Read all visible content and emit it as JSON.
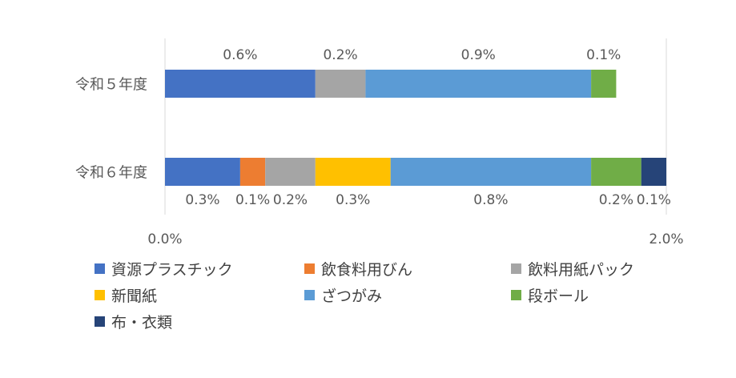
{
  "chart_data": {
    "type": "bar",
    "orientation": "horizontal",
    "stacked": true,
    "categories": [
      "令和５年度",
      "令和６年度"
    ],
    "xlim": [
      0,
      2.0
    ],
    "x_tick_labels": [
      "0.0%",
      "2.0%"
    ],
    "grid": false,
    "legend_position": "bottom",
    "series": [
      {
        "name": "資源プラスチック",
        "color": "#4472C4",
        "values": [
          0.6,
          0.3
        ],
        "labels": [
          "0.6%",
          "0.3%"
        ]
      },
      {
        "name": "飲食料用びん",
        "color": "#ED7D31",
        "values": [
          0,
          0.1
        ],
        "labels": [
          "",
          "0.1%"
        ]
      },
      {
        "name": "飲料用紙パック",
        "color": "#A5A5A5",
        "values": [
          0.2,
          0.2
        ],
        "labels": [
          "0.2%",
          "0.2%"
        ]
      },
      {
        "name": "新聞紙",
        "color": "#FFC000",
        "values": [
          0,
          0.3
        ],
        "labels": [
          "",
          "0.3%"
        ]
      },
      {
        "name": "ざつがみ",
        "color": "#5B9BD5",
        "values": [
          0.9,
          0.8
        ],
        "labels": [
          "0.9%",
          "0.8%"
        ]
      },
      {
        "name": "段ボール",
        "color": "#70AD47",
        "values": [
          0.1,
          0.2
        ],
        "labels": [
          "0.1%",
          "0.2%"
        ]
      },
      {
        "name": "布・衣類",
        "color": "#264478",
        "values": [
          0,
          0.1
        ],
        "labels": [
          "",
          "0.1%"
        ]
      }
    ]
  }
}
